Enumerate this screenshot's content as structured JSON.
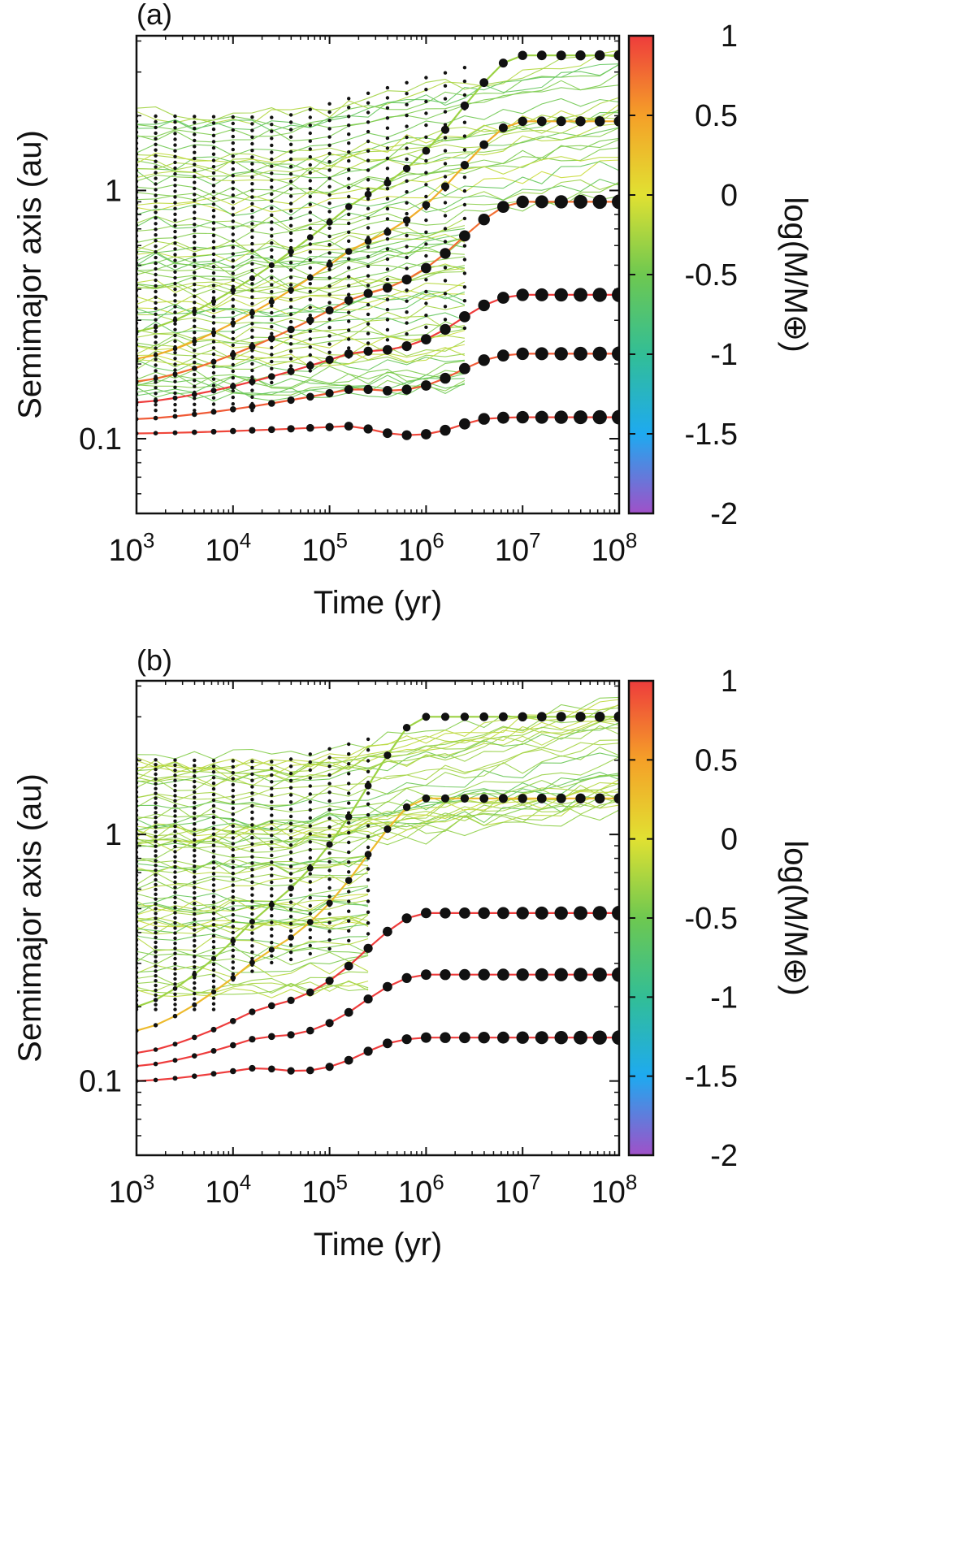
{
  "chart_data": [
    {
      "panel_label": "(a)",
      "type": "line",
      "xlabel": "Time (yr)",
      "ylabel": "Semimajor axis (au)",
      "xscale": "log",
      "yscale": "log",
      "xlim": [
        1000,
        100000000
      ],
      "ylim": [
        0.05,
        4.2
      ],
      "xticks": [
        {
          "value": 1000,
          "base": "10",
          "exp": "3"
        },
        {
          "value": 10000,
          "base": "10",
          "exp": "4"
        },
        {
          "value": 100000,
          "base": "10",
          "exp": "5"
        },
        {
          "value": 1000000,
          "base": "10",
          "exp": "6"
        },
        {
          "value": 10000000,
          "base": "10",
          "exp": "7"
        },
        {
          "value": 100000000,
          "base": "10",
          "exp": "8"
        }
      ],
      "yticks": [
        {
          "value": 0.1,
          "label": "0.1"
        },
        {
          "value": 1,
          "label": "1"
        }
      ],
      "colorbar": {
        "label": "log(M/M⊕)",
        "range": [
          -2,
          1
        ],
        "ticks": [
          {
            "value": 1,
            "label": "1"
          },
          {
            "value": 0.5,
            "label": "0.5"
          },
          {
            "value": 0,
            "label": "0"
          },
          {
            "value": -0.5,
            "label": "-0.5"
          },
          {
            "value": -1,
            "label": "-1"
          },
          {
            "value": -1.5,
            "label": "-1.5"
          },
          {
            "value": -2,
            "label": "-2"
          }
        ]
      },
      "snapshot_times": [
        1000,
        1580,
        2510,
        3980,
        6310,
        10000,
        15800,
        25100,
        39800,
        63100,
        100000,
        158000,
        251000,
        398000,
        631000,
        1000000,
        1580000,
        2510000,
        3980000,
        6310000,
        10000000,
        15800000,
        25100000,
        39800000,
        63100000,
        100000000
      ],
      "disk_band": {
        "inner_start": 0.1,
        "outer_start": 2.1,
        "outer_end": 4.2,
        "inner_end": 0.25,
        "clearing_time": 3000000
      },
      "series": [
        {
          "name": "final planet 1",
          "a_start": 0.105,
          "a_end": 0.122,
          "log_mass_final": 0.95
        },
        {
          "name": "final planet 2",
          "a_start": 0.12,
          "a_end": 0.22,
          "log_mass_final": 0.85
        },
        {
          "name": "final planet 3",
          "a_start": 0.14,
          "a_end": 0.38,
          "log_mass_final": 1.0
        },
        {
          "name": "final planet 4",
          "a_start": 0.17,
          "a_end": 0.9,
          "log_mass_final": 0.75
        },
        {
          "name": "final planet 5",
          "a_start": 0.21,
          "a_end": 1.9,
          "log_mass_final": 0.4
        },
        {
          "name": "final planet 6",
          "a_start": 0.27,
          "a_end": 3.5,
          "log_mass_final": -0.3
        }
      ]
    },
    {
      "panel_label": "(b)",
      "type": "line",
      "xlabel": "Time (yr)",
      "ylabel": "Semimajor axis (au)",
      "xscale": "log",
      "yscale": "log",
      "xlim": [
        1000,
        100000000
      ],
      "ylim": [
        0.05,
        4.2
      ],
      "xticks": [
        {
          "value": 1000,
          "base": "10",
          "exp": "3"
        },
        {
          "value": 10000,
          "base": "10",
          "exp": "4"
        },
        {
          "value": 100000,
          "base": "10",
          "exp": "5"
        },
        {
          "value": 1000000,
          "base": "10",
          "exp": "6"
        },
        {
          "value": 10000000,
          "base": "10",
          "exp": "7"
        },
        {
          "value": 100000000,
          "base": "10",
          "exp": "8"
        }
      ],
      "yticks": [
        {
          "value": 0.1,
          "label": "0.1"
        },
        {
          "value": 1,
          "label": "1"
        }
      ],
      "colorbar": {
        "label": "log(M/M⊕)",
        "range": [
          -2,
          1
        ],
        "ticks": [
          {
            "value": 1,
            "label": "1"
          },
          {
            "value": 0.5,
            "label": "0.5"
          },
          {
            "value": 0,
            "label": "0"
          },
          {
            "value": -0.5,
            "label": "-0.5"
          },
          {
            "value": -1,
            "label": "-1"
          },
          {
            "value": -1.5,
            "label": "-1.5"
          },
          {
            "value": -2,
            "label": "-2"
          }
        ]
      },
      "snapshot_times": [
        1000,
        1580,
        2510,
        3980,
        6310,
        10000,
        15800,
        25100,
        39800,
        63100,
        100000,
        158000,
        251000,
        398000,
        631000,
        1000000,
        1580000,
        2510000,
        3980000,
        6310000,
        10000000,
        15800000,
        25100000,
        39800000,
        63100000,
        100000000
      ],
      "disk_band": {
        "inner_start": 0.15,
        "outer_start": 2.1,
        "outer_end": 4.2,
        "inner_end": 0.7,
        "clearing_time": 300000
      },
      "series": [
        {
          "name": "final planet 1",
          "a_start": 0.1,
          "a_end": 0.15,
          "log_mass_final": 1.0
        },
        {
          "name": "final planet 2",
          "a_start": 0.115,
          "a_end": 0.27,
          "log_mass_final": 1.0
        },
        {
          "name": "final planet 3",
          "a_start": 0.13,
          "a_end": 0.48,
          "log_mass_final": 1.0
        },
        {
          "name": "final planet 4",
          "a_start": 0.16,
          "a_end": 1.4,
          "log_mass_final": 0.3
        },
        {
          "name": "final planet 5",
          "a_start": 0.2,
          "a_end": 3.0,
          "log_mass_final": -0.3
        }
      ]
    }
  ]
}
